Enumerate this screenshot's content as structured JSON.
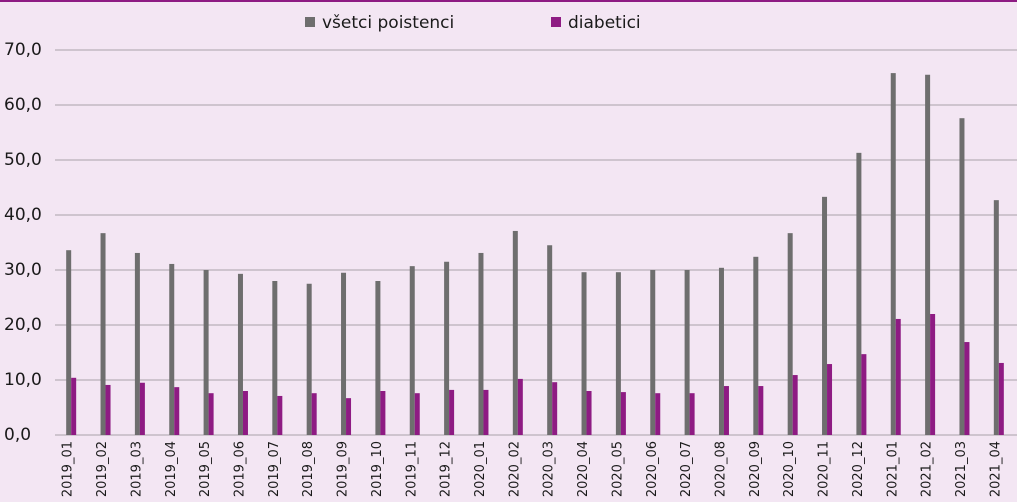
{
  "chart_data": {
    "type": "bar",
    "categories": [
      "2019_01",
      "2019_02",
      "2019_03",
      "2019_04",
      "2019_05",
      "2019_06",
      "2019_07",
      "2019_08",
      "2019_09",
      "2019_10",
      "2019_11",
      "2019_12",
      "2020_01",
      "2020_02",
      "2020_03",
      "2020_04",
      "2020_05",
      "2020_06",
      "2020_07",
      "2020_08",
      "2020_09",
      "2020_10",
      "2020_11",
      "2020_12",
      "2021_01",
      "2021_02",
      "2021_03",
      "2021_04"
    ],
    "series": [
      {
        "name": "všetci poistenci",
        "color": "#6e6e6e",
        "values": [
          33.6,
          36.7,
          33.1,
          31.1,
          30.0,
          29.3,
          28.0,
          27.5,
          29.5,
          28.0,
          30.7,
          31.5,
          33.1,
          37.1,
          34.5,
          29.6,
          29.6,
          30.0,
          30.0,
          30.4,
          32.4,
          36.7,
          43.3,
          51.3,
          65.8,
          65.5,
          57.6,
          42.7
        ]
      },
      {
        "name": "diabetici",
        "color": "#8e1b83",
        "values": [
          10.4,
          9.1,
          9.5,
          8.7,
          7.6,
          8.0,
          7.1,
          7.6,
          6.7,
          8.0,
          7.6,
          8.2,
          8.2,
          10.2,
          9.6,
          8.0,
          7.8,
          7.6,
          7.6,
          8.9,
          8.9,
          10.9,
          12.9,
          14.7,
          21.1,
          22.0,
          16.9,
          13.1
        ]
      }
    ],
    "ylim": [
      0,
      70
    ],
    "yticks": [
      {
        "value": 0,
        "label": "0,0"
      },
      {
        "value": 10,
        "label": "10,0"
      },
      {
        "value": 20,
        "label": "20,0"
      },
      {
        "value": 30,
        "label": "30,0"
      },
      {
        "value": 40,
        "label": "40,0"
      },
      {
        "value": 50,
        "label": "50,0"
      },
      {
        "value": 60,
        "label": "60,0"
      },
      {
        "value": 70,
        "label": "70,0"
      }
    ],
    "grid": true,
    "legend": "top"
  }
}
